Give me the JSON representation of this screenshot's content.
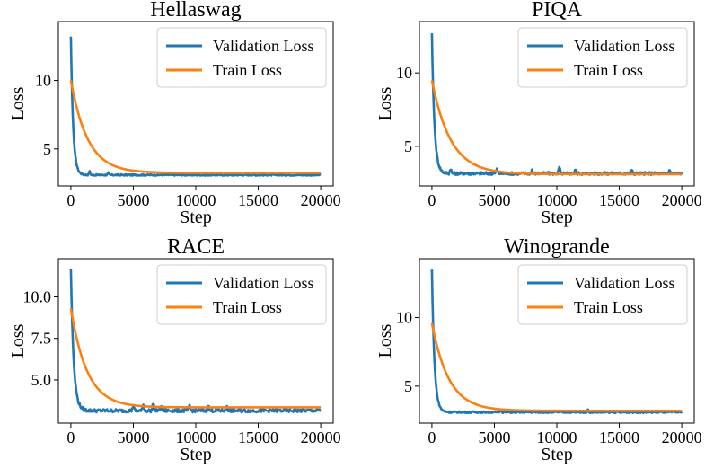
{
  "chart_data": [
    {
      "type": "line",
      "title": "Hellaswag",
      "xlabel": "Step",
      "ylabel": "Loss",
      "xlim": [
        -1000,
        21000
      ],
      "ylim": [
        2.3,
        14.3
      ],
      "xticks": [
        0,
        5000,
        10000,
        15000,
        20000
      ],
      "xtick_labels": [
        "0",
        "5000",
        "10000",
        "15000",
        "20000"
      ],
      "yticks": [
        5,
        10
      ],
      "ytick_labels": [
        "5",
        "10"
      ],
      "legend": "top-right",
      "series": [
        {
          "name": "Validation Loss",
          "color": "#1f77b4",
          "start": 13.2,
          "end": 3.1,
          "tau": 180,
          "noise": 0.05,
          "spikes": [
            [
              1500,
              0.25
            ],
            [
              3000,
              0.15
            ]
          ]
        },
        {
          "name": "Train Loss",
          "color": "#ff7f0e",
          "start": 10.0,
          "end": 3.25,
          "tau": 1350,
          "noise": 0.0,
          "spikes": []
        }
      ]
    },
    {
      "type": "line",
      "title": "PIQA",
      "xlabel": "Step",
      "ylabel": "Loss",
      "xlim": [
        -1000,
        21000
      ],
      "ylim": [
        2.3,
        13.5
      ],
      "xticks": [
        0,
        5000,
        10000,
        15000,
        20000
      ],
      "xtick_labels": [
        "0",
        "5000",
        "10000",
        "15000",
        "20000"
      ],
      "yticks": [
        5,
        10
      ],
      "ytick_labels": [
        "5",
        "10"
      ],
      "legend": "top-right",
      "series": [
        {
          "name": "Validation Loss",
          "color": "#1f77b4",
          "start": 12.7,
          "end": 3.15,
          "tau": 200,
          "noise": 0.1,
          "spikes": [
            [
              1500,
              0.35
            ],
            [
              5200,
              0.3
            ],
            [
              8000,
              0.25
            ],
            [
              10200,
              0.45
            ],
            [
              11500,
              0.3
            ],
            [
              16000,
              0.2
            ],
            [
              19000,
              0.25
            ]
          ]
        },
        {
          "name": "Train Loss",
          "color": "#ff7f0e",
          "start": 9.5,
          "end": 3.1,
          "tau": 1500,
          "noise": 0.0,
          "spikes": []
        }
      ]
    },
    {
      "type": "line",
      "title": "RACE",
      "xlabel": "Step",
      "ylabel": "Loss",
      "xlim": [
        -1000,
        21000
      ],
      "ylim": [
        2.4,
        12.3
      ],
      "xticks": [
        0,
        5000,
        10000,
        15000,
        20000
      ],
      "xtick_labels": [
        "0",
        "5000",
        "10000",
        "15000",
        "20000"
      ],
      "yticks": [
        5.0,
        7.5,
        10.0
      ],
      "ytick_labels": [
        "5.0",
        "7.5",
        "10.0"
      ],
      "legend": "top-right",
      "series": [
        {
          "name": "Validation Loss",
          "color": "#1f77b4",
          "start": 11.7,
          "end": 3.15,
          "tau": 220,
          "noise": 0.1,
          "spikes": [
            [
              5000,
              0.35
            ],
            [
              5800,
              0.45
            ],
            [
              6600,
              0.5
            ],
            [
              7200,
              0.3
            ],
            [
              9500,
              0.3
            ],
            [
              11000,
              0.35
            ],
            [
              12500,
              0.3
            ]
          ]
        },
        {
          "name": "Train Loss",
          "color": "#ff7f0e",
          "start": 9.3,
          "end": 3.35,
          "tau": 1300,
          "noise": 0.0,
          "spikes": []
        }
      ]
    },
    {
      "type": "line",
      "title": "Winogrande",
      "xlabel": "Step",
      "ylabel": "Loss",
      "xlim": [
        -1000,
        21000
      ],
      "ylim": [
        2.3,
        14.3
      ],
      "xticks": [
        0,
        5000,
        10000,
        15000,
        20000
      ],
      "xtick_labels": [
        "0",
        "5000",
        "10000",
        "15000",
        "20000"
      ],
      "yticks": [
        5,
        10
      ],
      "ytick_labels": [
        "5",
        "10"
      ],
      "legend": "top-right",
      "series": [
        {
          "name": "Validation Loss",
          "color": "#1f77b4",
          "start": 13.5,
          "end": 3.1,
          "tau": 200,
          "noise": 0.06,
          "spikes": [
            [
              5500,
              0.2
            ],
            [
              12500,
              0.2
            ]
          ]
        },
        {
          "name": "Train Loss",
          "color": "#ff7f0e",
          "start": 9.6,
          "end": 3.2,
          "tau": 1350,
          "noise": 0.0,
          "spikes": []
        }
      ]
    }
  ]
}
